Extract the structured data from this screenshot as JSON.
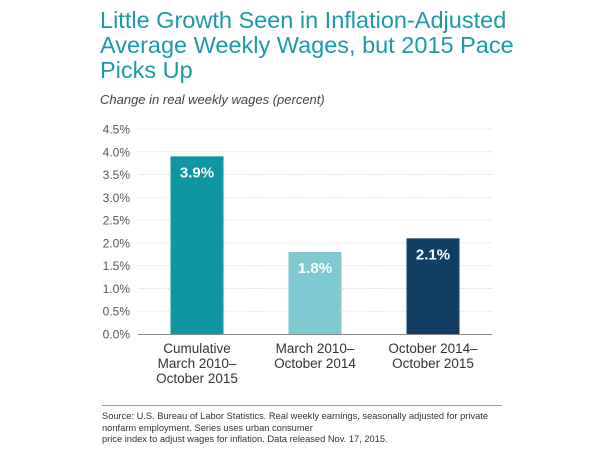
{
  "title": "Little Growth Seen in Inflation-Adjusted Average Weekly Wages, but 2015 Pace Picks Up",
  "subtitle": "Change in real weekly wages (percent)",
  "source_lines": [
    "Source: U.S. Bureau of Labor Statistics. Real weekly earnings, seasonally adjusted for private nonfarm employment. Series uses urban consumer",
    "price index to adjust wages for inflation. Data released Nov. 17, 2015."
  ],
  "chart_data": {
    "type": "bar",
    "categories": [
      [
        "Cumulative",
        "March 2010–",
        "October 2015"
      ],
      [
        "March 2010–",
        "October 2014"
      ],
      [
        "October 2014–",
        "October 2015"
      ]
    ],
    "values": [
      3.9,
      1.8,
      2.1
    ],
    "data_labels": [
      "3.9%",
      "1.8%",
      "2.1%"
    ],
    "colors": [
      "#0e96a3",
      "#7fc9d0",
      "#123e63"
    ],
    "ylim": [
      0,
      4.5
    ],
    "yticks": [
      0,
      0.5,
      1,
      1.5,
      2,
      2.5,
      3,
      3.5,
      4,
      4.5
    ],
    "ytick_labels": [
      "0.0%",
      "0.5%",
      "1.0%",
      "1.5%",
      "2.0%",
      "2.5%",
      "3.0%",
      "3.5%",
      "4.0%",
      "4.5%"
    ],
    "grid": true
  }
}
